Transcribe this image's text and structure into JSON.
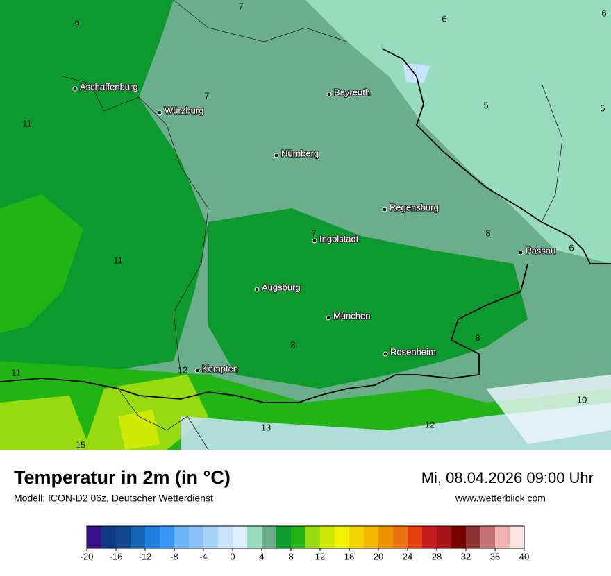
{
  "header": {
    "title": "Temperatur in 2m (in °C)",
    "subtitle": "Modell: ICON-D2 06z, Deutscher Wetterdienst",
    "datetime": "Mi, 08.04.2026 09:00 Uhr",
    "website": "www.wetterblick.com"
  },
  "map": {
    "cities": [
      "Aschaffenburg",
      "Würzburg",
      "Bayreuth",
      "Nürnberg",
      "Regensburg",
      "Ingolstadt",
      "Passau",
      "Augsburg",
      "München",
      "Rosenheim",
      "Kempten"
    ],
    "isotherm_labels": [
      7,
      9,
      6,
      6,
      7,
      5,
      5,
      11,
      7,
      8,
      6,
      11,
      8,
      8,
      12,
      11,
      10,
      13,
      12,
      15
    ]
  },
  "legend": {
    "bins": [
      -20,
      -18,
      -16,
      -14,
      -12,
      -10,
      -8,
      -6,
      -4,
      -2,
      0,
      2,
      4,
      6,
      8,
      10,
      12,
      14,
      16,
      18,
      20,
      22,
      24,
      26,
      28,
      30,
      32,
      34,
      36,
      38,
      40
    ],
    "colors": [
      "#35108a",
      "#0f3a82",
      "#0f468c",
      "#1563b2",
      "#1f7fe0",
      "#3496f0",
      "#6ab3f6",
      "#8ac2f7",
      "#a6d2f8",
      "#c8e3fb",
      "#dcedfc",
      "#98dcc0",
      "#6aae8c",
      "#0c9a2e",
      "#22b414",
      "#98da10",
      "#cfe806",
      "#f2f200",
      "#f3d400",
      "#f0b800",
      "#ee9200",
      "#ec7312",
      "#e6400e",
      "#c41c1c",
      "#a81418",
      "#780000",
      "#8a3232",
      "#c27272",
      "#f2b2b2",
      "#fde2e2"
    ],
    "ticks": [
      -20,
      -16,
      -12,
      -8,
      -4,
      0,
      4,
      8,
      12,
      16,
      20,
      24,
      28,
      32,
      36,
      40
    ]
  }
}
